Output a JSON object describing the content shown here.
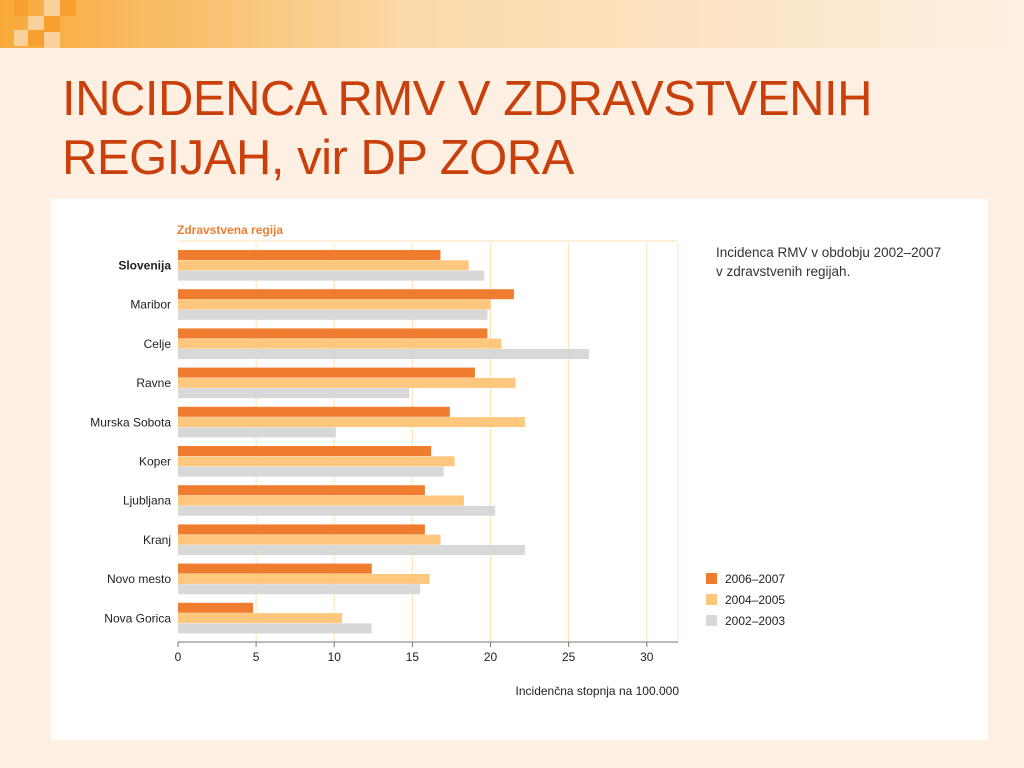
{
  "slide": {
    "title": "INCIDENCA RMV V ZDRAVSTVENIH REGIJAH, vir DP ZORA"
  },
  "colors": {
    "background": "#fdf0e2",
    "title": "#c9400c",
    "series_2006_2007": "#f07c30",
    "series_2004_2005": "#fdc77e",
    "series_2002_2003": "#d8d8d8",
    "gridline": "#fde2b4"
  },
  "chart_data": {
    "type": "bar",
    "orientation": "horizontal",
    "ylabel": "Zdravstvena regija",
    "xlabel": "Incidenčna stopnja na 100.000",
    "description": [
      "Incidenca RMV v obdobju 2002–2007",
      "v zdravstvenih regijah."
    ],
    "categories": [
      "Slovenija",
      "Maribor",
      "Celje",
      "Ravne",
      "Murska Sobota",
      "Koper",
      "Ljubljana",
      "Kranj",
      "Novo mesto",
      "Nova Gorica"
    ],
    "bold_categories": [
      "Slovenija"
    ],
    "xlim": [
      0,
      32
    ],
    "xticks": [
      0,
      5,
      10,
      15,
      20,
      25,
      30
    ],
    "grid": true,
    "legend_position": "bottom-right",
    "series": [
      {
        "name": "2006–2007",
        "color": "#f07c30",
        "values": [
          16.8,
          21.5,
          19.8,
          19.0,
          17.4,
          16.2,
          15.8,
          15.8,
          12.4,
          4.8
        ]
      },
      {
        "name": "2004–2005",
        "color": "#fdc77e",
        "values": [
          18.6,
          20.0,
          20.7,
          21.6,
          22.2,
          17.7,
          18.3,
          16.8,
          16.1,
          10.5
        ]
      },
      {
        "name": "2002–2003",
        "color": "#d8d8d8",
        "values": [
          19.6,
          19.8,
          26.3,
          14.8,
          10.1,
          17.0,
          20.3,
          22.2,
          15.5,
          12.4
        ]
      }
    ]
  }
}
